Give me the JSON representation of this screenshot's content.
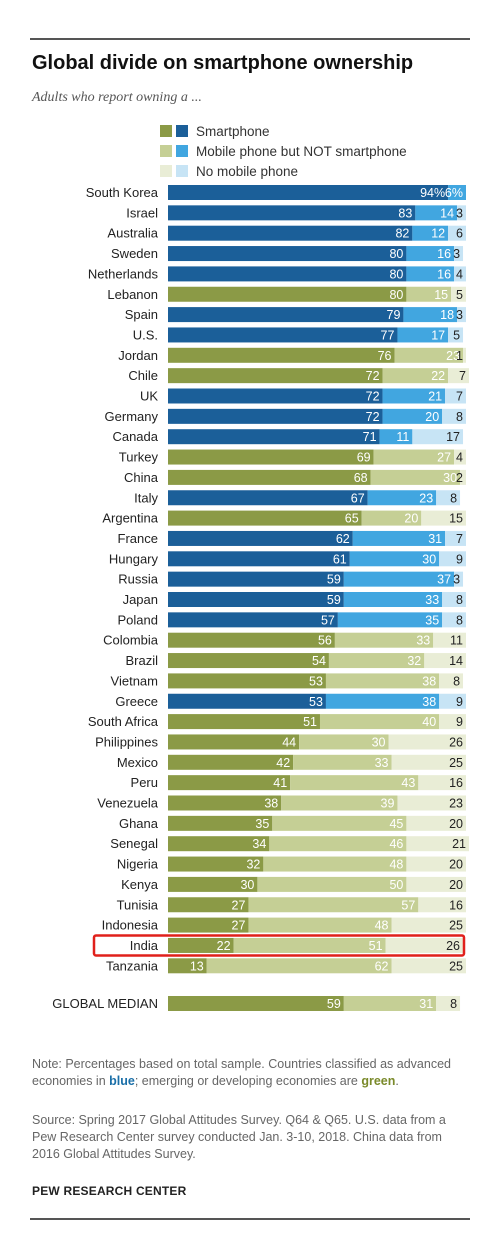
{
  "title": "Global divide on smartphone ownership",
  "subtitle": "Adults who report owning a ...",
  "legend": [
    {
      "label": "Smartphone",
      "green": "#8b9a46",
      "blue": "#1b5f99"
    },
    {
      "label": "Mobile phone but NOT smartphone",
      "green": "#c5cf95",
      "blue": "#41a6e0"
    },
    {
      "label": "No mobile phone",
      "green": "#e9edd6",
      "blue": "#c7e4f5"
    }
  ],
  "note_parts": {
    "a": "Note: Percentages based on total sample. Countries classified as advanced economies in ",
    "b": "blue",
    "c": "; emerging or developing economies are ",
    "d": "green",
    "e": "."
  },
  "source": "Source: Spring 2017 Global Attitudes Survey. Q64 & Q65. U.S. data from a Pew Research Center survey conducted Jan. 3-10, 2018. China data from 2016 Global Attitudes Survey.",
  "brand": "PEW RESEARCH CENTER",
  "colors": {
    "blue": [
      "#1b5f99",
      "#41a6e0",
      "#c7e4f5"
    ],
    "green": [
      "#8b9a46",
      "#c5cf95",
      "#e9edd6"
    ],
    "highlight": "#e0201b"
  },
  "chart_data": {
    "type": "bar",
    "stacked": true,
    "orientation": "horizontal",
    "series": [
      {
        "name": "Smartphone"
      },
      {
        "name": "Mobile phone but NOT smartphone"
      },
      {
        "name": "No mobile phone"
      }
    ],
    "rows": [
      {
        "country": "South Korea",
        "group": "blue",
        "values": [
          94,
          6,
          0
        ],
        "labels": [
          "94%",
          "6%",
          ""
        ]
      },
      {
        "country": "Israel",
        "group": "blue",
        "values": [
          83,
          14,
          3
        ],
        "labels": [
          "83",
          "14",
          "3"
        ]
      },
      {
        "country": "Australia",
        "group": "blue",
        "values": [
          82,
          12,
          6
        ],
        "labels": [
          "82",
          "12",
          "6"
        ]
      },
      {
        "country": "Sweden",
        "group": "blue",
        "values": [
          80,
          16,
          3
        ],
        "labels": [
          "80",
          "16",
          "3"
        ]
      },
      {
        "country": "Netherlands",
        "group": "blue",
        "values": [
          80,
          16,
          4
        ],
        "labels": [
          "80",
          "16",
          "4"
        ]
      },
      {
        "country": "Lebanon",
        "group": "green",
        "values": [
          80,
          15,
          5
        ],
        "labels": [
          "80",
          "15",
          "5"
        ]
      },
      {
        "country": "Spain",
        "group": "blue",
        "values": [
          79,
          18,
          3
        ],
        "labels": [
          "79",
          "18",
          "3"
        ]
      },
      {
        "country": "U.S.",
        "group": "blue",
        "values": [
          77,
          17,
          5
        ],
        "labels": [
          "77",
          "17",
          "5"
        ]
      },
      {
        "country": "Jordan",
        "group": "green",
        "values": [
          76,
          23,
          1
        ],
        "labels": [
          "76",
          "23",
          "1"
        ]
      },
      {
        "country": "Chile",
        "group": "green",
        "values": [
          72,
          22,
          7
        ],
        "labels": [
          "72",
          "22",
          "7"
        ]
      },
      {
        "country": "UK",
        "group": "blue",
        "values": [
          72,
          21,
          7
        ],
        "labels": [
          "72",
          "21",
          "7"
        ]
      },
      {
        "country": "Germany",
        "group": "blue",
        "values": [
          72,
          20,
          8
        ],
        "labels": [
          "72",
          "20",
          "8"
        ]
      },
      {
        "country": "Canada",
        "group": "blue",
        "values": [
          71,
          11,
          17
        ],
        "labels": [
          "71",
          "11",
          "17"
        ]
      },
      {
        "country": "Turkey",
        "group": "green",
        "values": [
          69,
          27,
          4
        ],
        "labels": [
          "69",
          "27",
          "4"
        ]
      },
      {
        "country": "China",
        "group": "green",
        "values": [
          68,
          30,
          2
        ],
        "labels": [
          "68",
          "30",
          "2"
        ]
      },
      {
        "country": "Italy",
        "group": "blue",
        "values": [
          67,
          23,
          8
        ],
        "labels": [
          "67",
          "23",
          "8"
        ]
      },
      {
        "country": "Argentina",
        "group": "green",
        "values": [
          65,
          20,
          15
        ],
        "labels": [
          "65",
          "20",
          "15"
        ]
      },
      {
        "country": "France",
        "group": "blue",
        "values": [
          62,
          31,
          7
        ],
        "labels": [
          "62",
          "31",
          "7"
        ]
      },
      {
        "country": "Hungary",
        "group": "blue",
        "values": [
          61,
          30,
          9
        ],
        "labels": [
          "61",
          "30",
          "9"
        ]
      },
      {
        "country": "Russia",
        "group": "blue",
        "values": [
          59,
          37,
          3
        ],
        "labels": [
          "59",
          "37",
          "3"
        ]
      },
      {
        "country": "Japan",
        "group": "blue",
        "values": [
          59,
          33,
          8
        ],
        "labels": [
          "59",
          "33",
          "8"
        ]
      },
      {
        "country": "Poland",
        "group": "blue",
        "values": [
          57,
          35,
          8
        ],
        "labels": [
          "57",
          "35",
          "8"
        ]
      },
      {
        "country": "Colombia",
        "group": "green",
        "values": [
          56,
          33,
          11
        ],
        "labels": [
          "56",
          "33",
          "11"
        ]
      },
      {
        "country": "Brazil",
        "group": "green",
        "values": [
          54,
          32,
          14
        ],
        "labels": [
          "54",
          "32",
          "14"
        ]
      },
      {
        "country": "Vietnam",
        "group": "green",
        "values": [
          53,
          38,
          8
        ],
        "labels": [
          "53",
          "38",
          "8"
        ]
      },
      {
        "country": "Greece",
        "group": "blue",
        "values": [
          53,
          38,
          9
        ],
        "labels": [
          "53",
          "38",
          "9"
        ]
      },
      {
        "country": "South Africa",
        "group": "green",
        "values": [
          51,
          40,
          9
        ],
        "labels": [
          "51",
          "40",
          "9"
        ]
      },
      {
        "country": "Philippines",
        "group": "green",
        "values": [
          44,
          30,
          26
        ],
        "labels": [
          "44",
          "30",
          "26"
        ]
      },
      {
        "country": "Mexico",
        "group": "green",
        "values": [
          42,
          33,
          25
        ],
        "labels": [
          "42",
          "33",
          "25"
        ]
      },
      {
        "country": "Peru",
        "group": "green",
        "values": [
          41,
          43,
          16
        ],
        "labels": [
          "41",
          "43",
          "16"
        ]
      },
      {
        "country": "Venezuela",
        "group": "green",
        "values": [
          38,
          39,
          23
        ],
        "labels": [
          "38",
          "39",
          "23"
        ]
      },
      {
        "country": "Ghana",
        "group": "green",
        "values": [
          35,
          45,
          20
        ],
        "labels": [
          "35",
          "45",
          "20"
        ]
      },
      {
        "country": "Senegal",
        "group": "green",
        "values": [
          34,
          46,
          21
        ],
        "labels": [
          "34",
          "46",
          "21"
        ]
      },
      {
        "country": "Nigeria",
        "group": "green",
        "values": [
          32,
          48,
          20
        ],
        "labels": [
          "32",
          "48",
          "20"
        ]
      },
      {
        "country": "Kenya",
        "group": "green",
        "values": [
          30,
          50,
          20
        ],
        "labels": [
          "30",
          "50",
          "20"
        ]
      },
      {
        "country": "Tunisia",
        "group": "green",
        "values": [
          27,
          57,
          16
        ],
        "labels": [
          "27",
          "57",
          "16"
        ]
      },
      {
        "country": "Indonesia",
        "group": "green",
        "values": [
          27,
          48,
          25
        ],
        "labels": [
          "27",
          "48",
          "25"
        ]
      },
      {
        "country": "India",
        "group": "green",
        "values": [
          22,
          51,
          26
        ],
        "labels": [
          "22",
          "51",
          "26"
        ],
        "highlight": true
      },
      {
        "country": "Tanzania",
        "group": "green",
        "values": [
          13,
          62,
          25
        ],
        "labels": [
          "13",
          "62",
          "25"
        ]
      }
    ],
    "median": {
      "country": "GLOBAL MEDIAN",
      "group": "green",
      "values": [
        59,
        31,
        8
      ],
      "labels": [
        "59",
        "31",
        "8"
      ]
    }
  }
}
